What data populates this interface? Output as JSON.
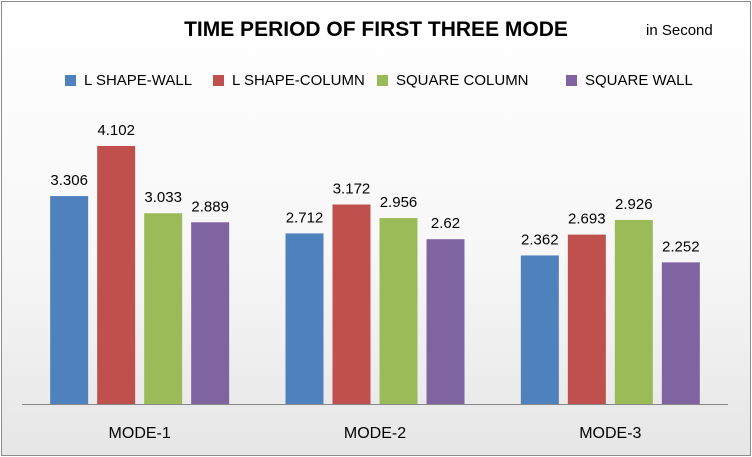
{
  "chart_data": {
    "type": "bar",
    "title": "TIME PERIOD OF FIRST THREE MODE",
    "unit_note": "in Second",
    "categories": [
      "MODE-1",
      "MODE-2",
      "MODE-3"
    ],
    "series": [
      {
        "name": "L SHAPE-WALL",
        "color": "#4f81bd",
        "values": [
          3.306,
          2.712,
          2.362
        ],
        "labels": [
          "3.306",
          "2.712",
          "2.362"
        ]
      },
      {
        "name": "L SHAPE-COLUMN",
        "color": "#c0504d",
        "values": [
          4.102,
          3.172,
          2.693
        ],
        "labels": [
          "4.102",
          "3.172",
          "2.693"
        ]
      },
      {
        "name": "SQUARE COLUMN",
        "color": "#9bbb59",
        "values": [
          3.033,
          2.956,
          2.926
        ],
        "labels": [
          "3.033",
          "2.956",
          "2.926"
        ]
      },
      {
        "name": "SQUARE WALL",
        "color": "#8064a2",
        "values": [
          2.889,
          2.62,
          2.252
        ],
        "labels": [
          "2.889",
          "2.62",
          "2.252"
        ]
      }
    ],
    "ylim": [
      0,
      4.102
    ],
    "legend_position": "top",
    "grid": false,
    "xlabel": "",
    "ylabel": ""
  }
}
